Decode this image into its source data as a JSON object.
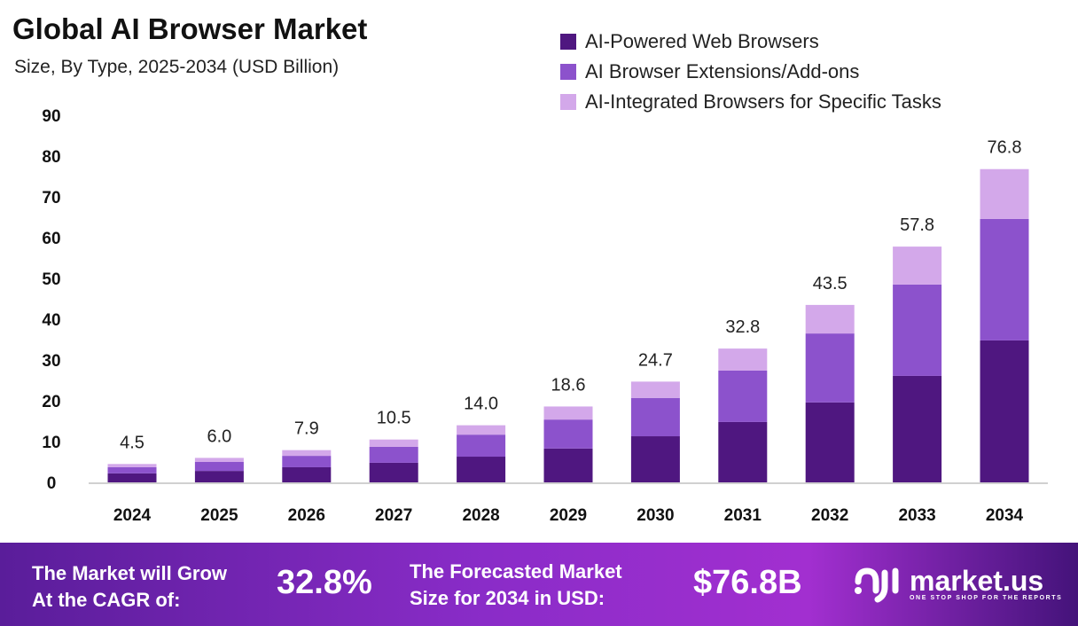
{
  "chart_data": {
    "type": "bar",
    "stacked": true,
    "title": "Global AI Browser Market",
    "subtitle": "Size, By Type, 2025-2034 (USD Billion)",
    "categories": [
      "2024",
      "2025",
      "2026",
      "2027",
      "2028",
      "2029",
      "2030",
      "2031",
      "2032",
      "2033",
      "2034"
    ],
    "series": [
      {
        "name": "AI-Powered Web Browsers",
        "color": "#4f1780",
        "values": [
          2.2,
          2.8,
          3.7,
          4.8,
          6.3,
          8.3,
          11.3,
          14.8,
          19.6,
          26.1,
          34.8
        ]
      },
      {
        "name": "AI Browser Extensions/Add-ons",
        "color": "#8c52cc",
        "values": [
          1.5,
          2.2,
          2.8,
          3.9,
          5.4,
          7.1,
          9.4,
          12.6,
          16.9,
          22.4,
          29.8
        ]
      },
      {
        "name": "AI-Integrated Browsers for Specific Tasks",
        "color": "#d3a8ea",
        "values": [
          0.8,
          1.0,
          1.4,
          1.8,
          2.3,
          3.2,
          4.0,
          5.4,
          7.0,
          9.3,
          12.2
        ]
      }
    ],
    "totals": [
      "4.5",
      "6.0",
      "7.9",
      "10.5",
      "14.0",
      "18.6",
      "24.7",
      "32.8",
      "43.5",
      "57.8",
      "76.8"
    ],
    "yticks": [
      "0",
      "10",
      "20",
      "30",
      "40",
      "50",
      "60",
      "70",
      "80",
      "90"
    ],
    "ylim": [
      0,
      90
    ],
    "grid": false,
    "legend_position": "top-right"
  },
  "banner": {
    "cagr_label": "The Market will Grow At the CAGR of:",
    "cagr_label_1": "The Market will Grow",
    "cagr_label_2": "At the CAGR of:",
    "cagr_value": "32.8%",
    "forecast_label_1": "The Forecasted Market",
    "forecast_label_2": "Size for 2034 in USD:",
    "forecast_value": "$76.8B",
    "logo_name": "market.us",
    "logo_tagline": "ONE STOP SHOP FOR THE REPORTS"
  }
}
